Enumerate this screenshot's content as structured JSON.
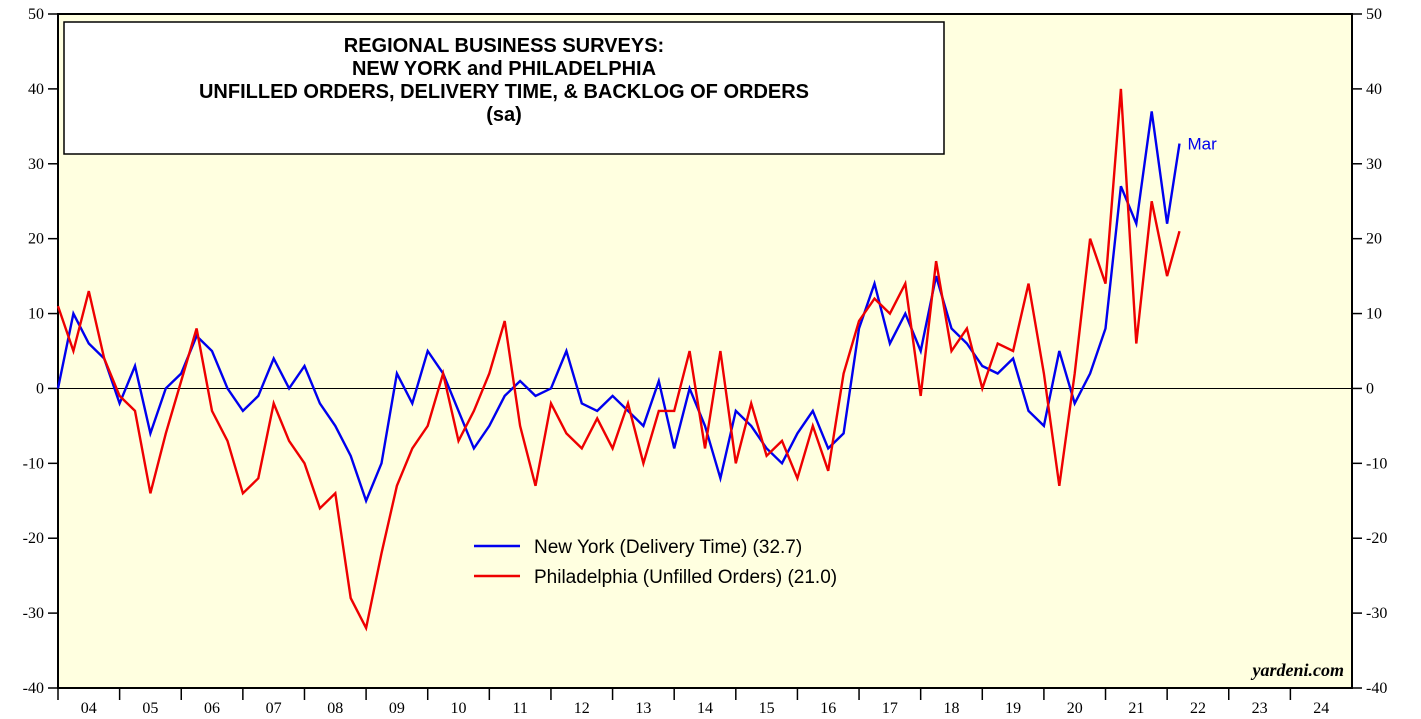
{
  "chart_data": {
    "type": "line",
    "title": [
      "REGIONAL BUSINESS SURVEYS:",
      "NEW YORK and PHILADELPHIA",
      "UNFILLED ORDERS, DELIVERY TIME, & BACKLOG OF ORDERS",
      "(sa)"
    ],
    "annotation": "Mar",
    "source": "yardeni.com",
    "x": [
      2004.0,
      2004.25,
      2004.5,
      2004.75,
      2005.0,
      2005.25,
      2005.5,
      2005.75,
      2006.0,
      2006.25,
      2006.5,
      2006.75,
      2007.0,
      2007.25,
      2007.5,
      2007.75,
      2008.0,
      2008.25,
      2008.5,
      2008.75,
      2009.0,
      2009.25,
      2009.5,
      2009.75,
      2010.0,
      2010.25,
      2010.5,
      2010.75,
      2011.0,
      2011.25,
      2011.5,
      2011.75,
      2012.0,
      2012.25,
      2012.5,
      2012.75,
      2013.0,
      2013.25,
      2013.5,
      2013.75,
      2014.0,
      2014.25,
      2014.5,
      2014.75,
      2015.0,
      2015.25,
      2015.5,
      2015.75,
      2016.0,
      2016.25,
      2016.5,
      2016.75,
      2017.0,
      2017.25,
      2017.5,
      2017.75,
      2018.0,
      2018.25,
      2018.5,
      2018.75,
      2019.0,
      2019.25,
      2019.5,
      2019.75,
      2020.0,
      2020.25,
      2020.5,
      2020.75,
      2021.0,
      2021.25,
      2021.5,
      2021.75,
      2022.0,
      2022.2
    ],
    "series": [
      {
        "name": "New York (Delivery Time) (32.7)",
        "color": "#0000ee",
        "values": [
          0,
          10,
          6,
          4,
          -2,
          3,
          -6,
          0,
          2,
          7,
          5,
          0,
          -3,
          -1,
          4,
          0,
          3,
          -2,
          -5,
          -9,
          -15,
          -10,
          2,
          -2,
          5,
          2,
          -3,
          -8,
          -5,
          -1,
          1,
          -1,
          0,
          5,
          -2,
          -3,
          -1,
          -3,
          -5,
          1,
          -8,
          0,
          -5,
          -12,
          -3,
          -5,
          -8,
          -10,
          -6,
          -3,
          -8,
          -6,
          8,
          14,
          6,
          10,
          5,
          15,
          8,
          6,
          3,
          2,
          4,
          -3,
          -5,
          5,
          -2,
          2,
          8,
          27,
          22,
          37,
          22,
          32.7
        ]
      },
      {
        "name": "Philadelphia (Unfilled Orders) (21.0)",
        "color": "#ee0000",
        "values": [
          11,
          5,
          13,
          4,
          -1,
          -3,
          -14,
          -6,
          1,
          8,
          -3,
          -7,
          -14,
          -12,
          -2,
          -7,
          -10,
          -16,
          -14,
          -28,
          -32,
          -22,
          -13,
          -8,
          -5,
          2,
          -7,
          -3,
          2,
          9,
          -5,
          -13,
          -2,
          -6,
          -8,
          -4,
          -8,
          -2,
          -10,
          -3,
          -3,
          5,
          -8,
          5,
          -10,
          -2,
          -9,
          -7,
          -12,
          -5,
          -11,
          2,
          9,
          12,
          10,
          14,
          -1,
          17,
          5,
          8,
          0,
          6,
          5,
          14,
          2,
          -13,
          2,
          20,
          14,
          40,
          6,
          25,
          15,
          21.0
        ]
      }
    ],
    "xlim": [
      2004,
      2025
    ],
    "xticks": [
      {
        "value": 2004,
        "label": "04"
      },
      {
        "value": 2005,
        "label": "05"
      },
      {
        "value": 2006,
        "label": "06"
      },
      {
        "value": 2007,
        "label": "07"
      },
      {
        "value": 2008,
        "label": "08"
      },
      {
        "value": 2009,
        "label": "09"
      },
      {
        "value": 2010,
        "label": "10"
      },
      {
        "value": 2011,
        "label": "11"
      },
      {
        "value": 2012,
        "label": "12"
      },
      {
        "value": 2013,
        "label": "13"
      },
      {
        "value": 2014,
        "label": "14"
      },
      {
        "value": 2015,
        "label": "15"
      },
      {
        "value": 2016,
        "label": "16"
      },
      {
        "value": 2017,
        "label": "17"
      },
      {
        "value": 2018,
        "label": "18"
      },
      {
        "value": 2019,
        "label": "19"
      },
      {
        "value": 2020,
        "label": "20"
      },
      {
        "value": 2021,
        "label": "21"
      },
      {
        "value": 2022,
        "label": "22"
      },
      {
        "value": 2023,
        "label": "23"
      },
      {
        "value": 2024,
        "label": "24"
      }
    ],
    "ylim": [
      -40,
      50
    ],
    "yticks": [
      -40,
      -30,
      -20,
      -10,
      0,
      10,
      20,
      30,
      40,
      50
    ],
    "background": "#ffffe0"
  }
}
